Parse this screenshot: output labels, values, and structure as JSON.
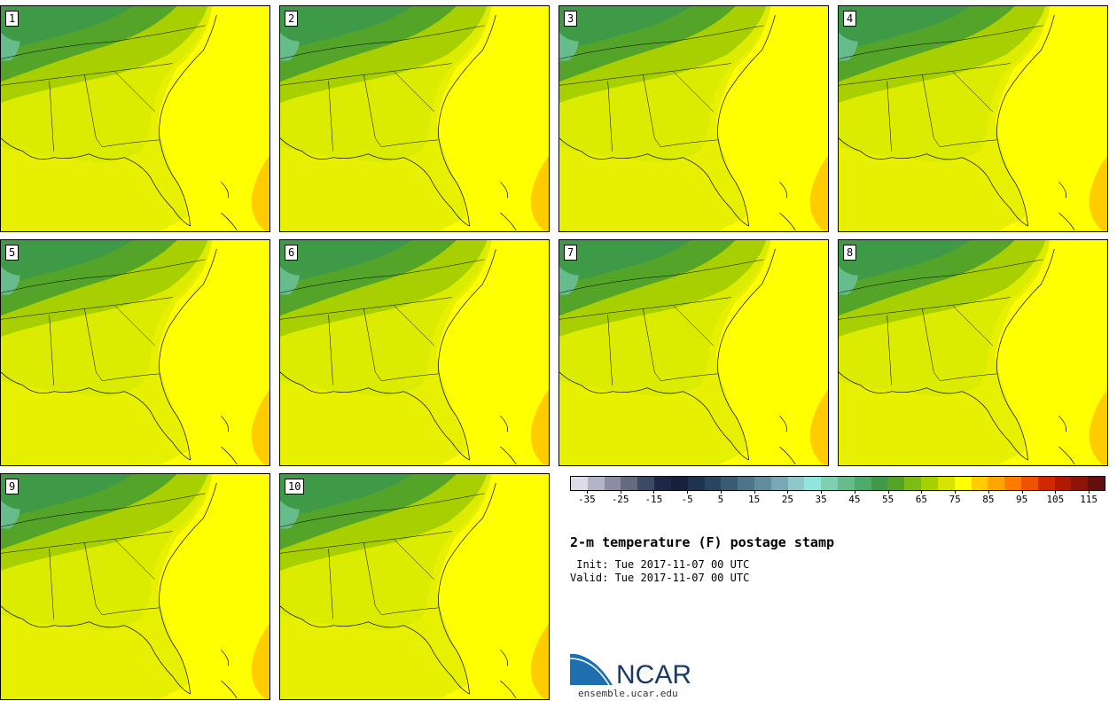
{
  "title": "2-m temperature (F) postage stamp",
  "init_line": " Init: Tue 2017-11-07 00 UTC",
  "valid_line": "Valid: Tue 2017-11-07 00 UTC",
  "panels": [
    {
      "label": "1"
    },
    {
      "label": "2"
    },
    {
      "label": "3"
    },
    {
      "label": "4"
    },
    {
      "label": "5"
    },
    {
      "label": "6"
    },
    {
      "label": "7"
    },
    {
      "label": "8"
    },
    {
      "label": "9"
    },
    {
      "label": "10"
    }
  ],
  "colorbar": {
    "colors": [
      "#dcdce6",
      "#b4b4c6",
      "#8c8ca4",
      "#646a80",
      "#3c4a64",
      "#1e2846",
      "#16213c",
      "#1f3350",
      "#2a4560",
      "#3a5c72",
      "#4d7488",
      "#628c9c",
      "#78a8b4",
      "#8ec8c8",
      "#8ee6dc",
      "#7ed0b0",
      "#66bc8a",
      "#4caa6a",
      "#3e9a46",
      "#54a42a",
      "#7cbc14",
      "#a8d000",
      "#d6e400",
      "#ffff00",
      "#ffcc00",
      "#ffa600",
      "#ff7c00",
      "#f05200",
      "#d22800",
      "#b01800",
      "#8c1408",
      "#641010"
    ],
    "tick_labels": [
      "-35",
      "-25",
      "-15",
      "-5",
      "5",
      "15",
      "25",
      "35",
      "45",
      "55",
      "65",
      "75",
      "85",
      "95",
      "105",
      "115"
    ],
    "range": [
      -40,
      120
    ]
  },
  "logo": {
    "text": "NCAR",
    "url": "ensemble.ucar.edu",
    "accent": "#1f6fb0"
  }
}
